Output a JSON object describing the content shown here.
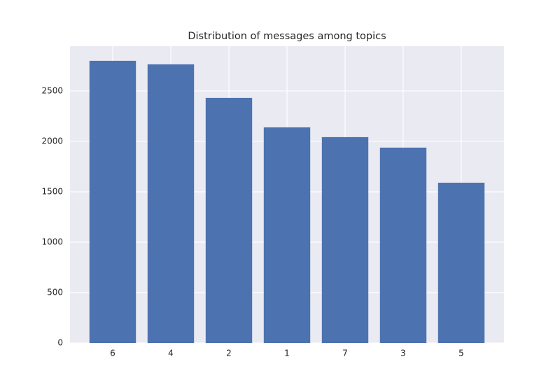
{
  "chart_data": {
    "type": "bar",
    "title": "Distribution of messages among topics",
    "categories": [
      "6",
      "4",
      "2",
      "1",
      "7",
      "3",
      "5"
    ],
    "values": [
      2799,
      2764,
      2431,
      2139,
      2042,
      1938,
      1590
    ],
    "color": "#4c72b0",
    "ylim": [
      0,
      2944
    ],
    "yticks": [
      0,
      500,
      1000,
      1500,
      2000,
      2500
    ],
    "grid": true
  }
}
